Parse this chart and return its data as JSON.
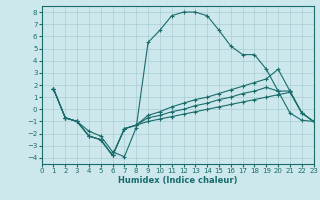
{
  "xlabel": "Humidex (Indice chaleur)",
  "ylabel": "",
  "xlim": [
    0,
    23
  ],
  "ylim": [
    -4.5,
    8.5
  ],
  "xticks": [
    0,
    1,
    2,
    3,
    4,
    5,
    6,
    7,
    8,
    9,
    10,
    11,
    12,
    13,
    14,
    15,
    16,
    17,
    18,
    19,
    20,
    21,
    22,
    23
  ],
  "yticks": [
    -4,
    -3,
    -2,
    -1,
    0,
    1,
    2,
    3,
    4,
    5,
    6,
    7,
    8
  ],
  "bg_color": "#cce8ec",
  "grid_color": "#aacdd4",
  "line_color": "#1a6b6b",
  "lines": [
    {
      "x": [
        1,
        2,
        3,
        4,
        5,
        6,
        7,
        8,
        9,
        10,
        11,
        12,
        13,
        14,
        15,
        16,
        17,
        18,
        19,
        20,
        21,
        22,
        23
      ],
      "y": [
        1.7,
        -0.7,
        -1.0,
        -1.8,
        -2.2,
        -3.5,
        -3.9,
        -1.5,
        5.5,
        6.5,
        7.7,
        8.0,
        8.0,
        7.7,
        6.5,
        5.2,
        4.5,
        4.5,
        3.3,
        1.5,
        -0.3,
        -0.9,
        -1.0
      ]
    },
    {
      "x": [
        1,
        2,
        3,
        4,
        5,
        6,
        7,
        8,
        9,
        10,
        11,
        12,
        13,
        14,
        15,
        16,
        17,
        18,
        19,
        20,
        21,
        22,
        23
      ],
      "y": [
        1.7,
        -0.7,
        -1.0,
        -2.2,
        -2.5,
        -3.8,
        -1.6,
        -1.3,
        -0.5,
        -0.2,
        0.2,
        0.5,
        0.8,
        1.0,
        1.3,
        1.6,
        1.9,
        2.2,
        2.5,
        3.3,
        1.5,
        -0.3,
        -1.0
      ]
    },
    {
      "x": [
        1,
        2,
        3,
        4,
        5,
        6,
        7,
        8,
        9,
        10,
        11,
        12,
        13,
        14,
        15,
        16,
        17,
        18,
        19,
        20,
        21,
        22,
        23
      ],
      "y": [
        1.7,
        -0.7,
        -1.0,
        -2.2,
        -2.5,
        -3.8,
        -1.6,
        -1.3,
        -0.7,
        -0.5,
        -0.2,
        0.0,
        0.3,
        0.5,
        0.8,
        1.0,
        1.3,
        1.5,
        1.8,
        1.5,
        1.5,
        -0.3,
        -1.0
      ]
    },
    {
      "x": [
        1,
        2,
        3,
        4,
        5,
        6,
        7,
        8,
        9,
        10,
        11,
        12,
        13,
        14,
        15,
        16,
        17,
        18,
        19,
        20,
        21,
        22,
        23
      ],
      "y": [
        1.7,
        -0.7,
        -1.0,
        -2.2,
        -2.5,
        -3.8,
        -1.6,
        -1.3,
        -1.0,
        -0.8,
        -0.6,
        -0.4,
        -0.2,
        0.0,
        0.2,
        0.4,
        0.6,
        0.8,
        1.0,
        1.2,
        1.4,
        -0.3,
        -1.0
      ]
    }
  ]
}
